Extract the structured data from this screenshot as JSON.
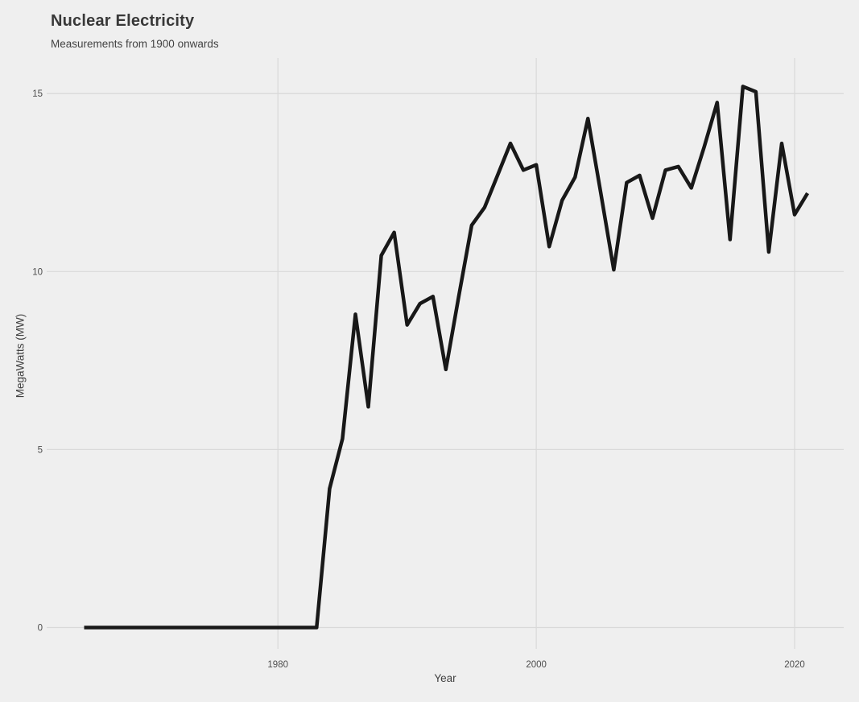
{
  "header": {
    "title": "Nuclear Electricity",
    "subtitle": "Measurements from 1900 onwards"
  },
  "colors": {
    "background": "#efefef",
    "gridline": "#d9d9d9",
    "line": "#181818",
    "title_text": "#383838",
    "axis_text": "#4d4d4d"
  },
  "chart_data": {
    "type": "line",
    "title": "Nuclear Electricity",
    "subtitle": "Measurements from 1900 onwards",
    "xlabel": "Year",
    "ylabel": "MegaWatts (MW)",
    "x_ticks": [
      1980,
      2000,
      2020
    ],
    "y_ticks": [
      0,
      5,
      10,
      15
    ],
    "xlim": [
      1962.1,
      2023.8
    ],
    "ylim": [
      -0.6,
      16.0
    ],
    "grid": "major-only",
    "legend": "none",
    "line_width": 4.5,
    "x": [
      1965,
      1966,
      1967,
      1968,
      1969,
      1970,
      1971,
      1972,
      1973,
      1974,
      1975,
      1976,
      1977,
      1978,
      1979,
      1980,
      1981,
      1982,
      1983,
      1984,
      1985,
      1986,
      1987,
      1988,
      1989,
      1990,
      1991,
      1992,
      1993,
      1994,
      1995,
      1996,
      1997,
      1998,
      1999,
      2000,
      2001,
      2002,
      2003,
      2004,
      2005,
      2006,
      2007,
      2008,
      2009,
      2010,
      2011,
      2012,
      2013,
      2014,
      2015,
      2016,
      2017,
      2018,
      2019,
      2020,
      2021
    ],
    "values": [
      0,
      0,
      0,
      0,
      0,
      0,
      0,
      0,
      0,
      0,
      0,
      0,
      0,
      0,
      0,
      0,
      0,
      0,
      0,
      3.9,
      5.3,
      8.8,
      6.2,
      10.45,
      11.1,
      8.5,
      9.1,
      9.3,
      7.25,
      9.3,
      11.3,
      11.8,
      12.7,
      13.6,
      12.85,
      13.0,
      10.7,
      12.0,
      12.65,
      14.3,
      12.2,
      10.05,
      12.5,
      12.7,
      11.5,
      12.85,
      12.95,
      12.35,
      13.5,
      14.75,
      10.9,
      15.2,
      15.05,
      10.55,
      13.6,
      11.6,
      12.2
    ]
  }
}
